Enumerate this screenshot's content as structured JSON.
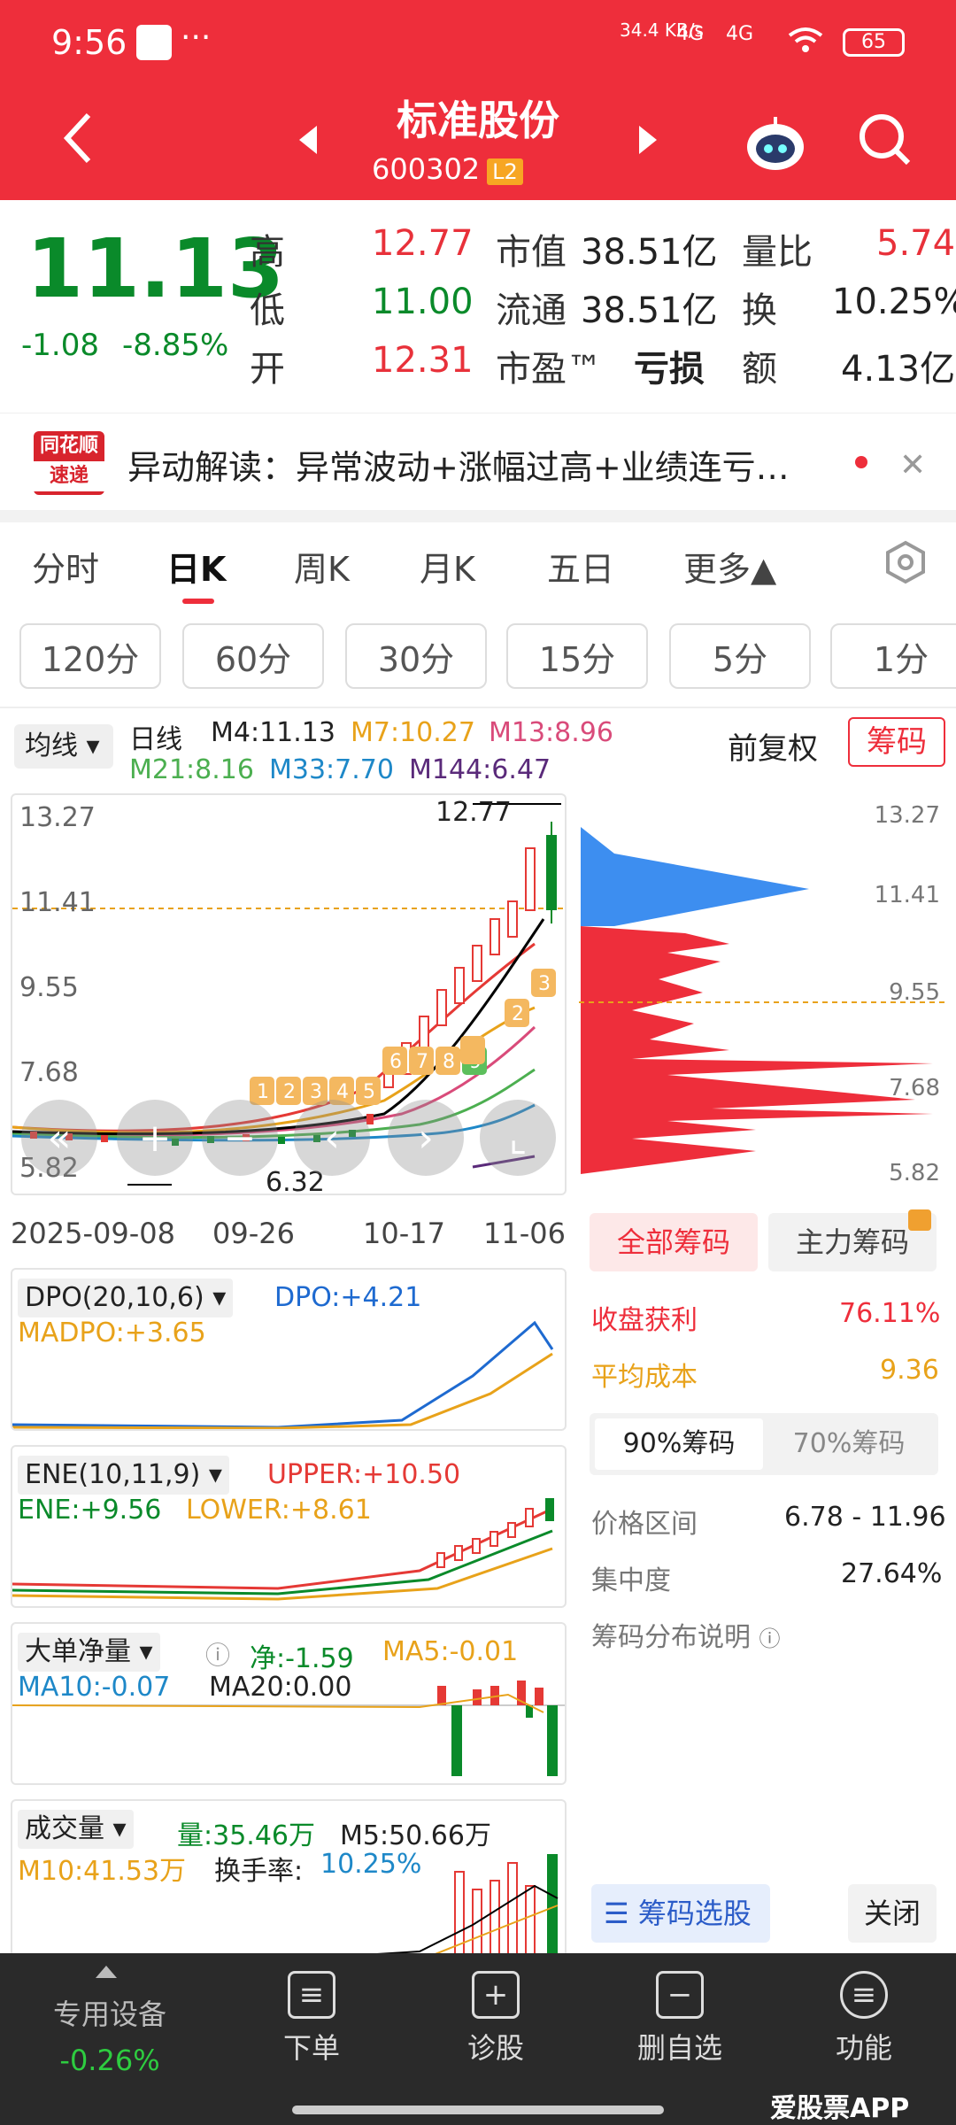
{
  "status": {
    "time": "9:56",
    "dots": "···",
    "net": "34.4\nKB/s",
    "sig1": "4G",
    "sig2": "4G",
    "battery": "65"
  },
  "header": {
    "title": "标准股份",
    "code": "600302",
    "level": "L2"
  },
  "quote": {
    "price": "11.13",
    "change": "-1.08",
    "pct": "-8.85%",
    "high_label": "高",
    "high": "12.77",
    "low_label": "低",
    "low": "11.00",
    "open_label": "开",
    "open": "12.31",
    "mcap_label": "市值",
    "mcap": "38.51亿",
    "float_label": "流通",
    "float": "38.51亿",
    "pe_label": "市盈™",
    "pe": "亏损",
    "vr_label": "量比",
    "vr": "5.74",
    "turn_label": "换",
    "turn": "10.25%",
    "amt_label": "额",
    "amt": "4.13亿"
  },
  "news": {
    "logo1": "同花顺",
    "logo2": "速递",
    "text": "异动解读：异常波动+涨幅过高+业绩连亏…"
  },
  "tabs": [
    "分时",
    "日K",
    "周K",
    "月K",
    "五日",
    "更多▲"
  ],
  "periods": [
    "120分",
    "60分",
    "30分",
    "15分",
    "5分",
    "1分"
  ],
  "ma": {
    "selector": "均线",
    "type": "日线",
    "m4": "M4:11.13",
    "m7": "M7:10.27",
    "m13": "M13:8.96",
    "m21": "M21:8.16",
    "m33": "M33:7.70",
    "m144": "M144:6.47",
    "adjust": "前复权",
    "chip_btn": "筹码"
  },
  "kline": {
    "y_labels": [
      "13.27",
      "11.41",
      "9.55",
      "7.68",
      "5.82"
    ],
    "max_label": "12.77",
    "min_label": "6.32",
    "dates": [
      "2025-09-08",
      "09-26",
      "10-17",
      "11-06"
    ]
  },
  "chip": {
    "y_labels": [
      "13.27",
      "11.41",
      "9.55",
      "7.68",
      "5.82"
    ],
    "tab_all": "全部筹码",
    "tab_main": "主力筹码",
    "profit_label": "收盘获利",
    "profit": "76.11%",
    "cost_label": "平均成本",
    "cost": "9.36",
    "p90": "90%筹码",
    "p70": "70%筹码",
    "range_label": "价格区间",
    "range": "6.78 - 11.96",
    "conc_label": "集中度",
    "conc": "27.64%",
    "explain": "筹码分布说明",
    "select_btn": "筹码选股",
    "close_btn": "关闭"
  },
  "dpo": {
    "name": "DPO(20,10,6)",
    "dpo": "DPO:+4.21",
    "madpo": "MADPO:+3.65"
  },
  "ene": {
    "name": "ENE(10,11,9)",
    "upper": "UPPER:+10.50",
    "ene": "ENE:+9.56",
    "lower": "LOWER:+8.61"
  },
  "bigorder": {
    "name": "大单净量",
    "net": "净:-1.59",
    "ma5": "MA5:-0.01",
    "ma10": "MA10:-0.07",
    "ma20": "MA20:0.00"
  },
  "volume": {
    "name": "成交量",
    "vol": "量:35.46万",
    "m5": "M5:50.66万",
    "m10": "M10:41.53万",
    "turn_label": "换手率:",
    "turn": "10.25%"
  },
  "bottom": {
    "device": "专用设备",
    "device_pct": "-0.26%",
    "order": "下单",
    "diag": "诊股",
    "del": "删自选",
    "func": "功能"
  },
  "watermark": "爱股票APP",
  "colors": {
    "red": "#ee2e3b",
    "green": "#0a8a2a",
    "blue": "#1e6ad0",
    "orange": "#e8a21a",
    "pink": "#d94b7a",
    "chipred": "#ee2e3b",
    "chipblue": "#3d8ef0"
  }
}
